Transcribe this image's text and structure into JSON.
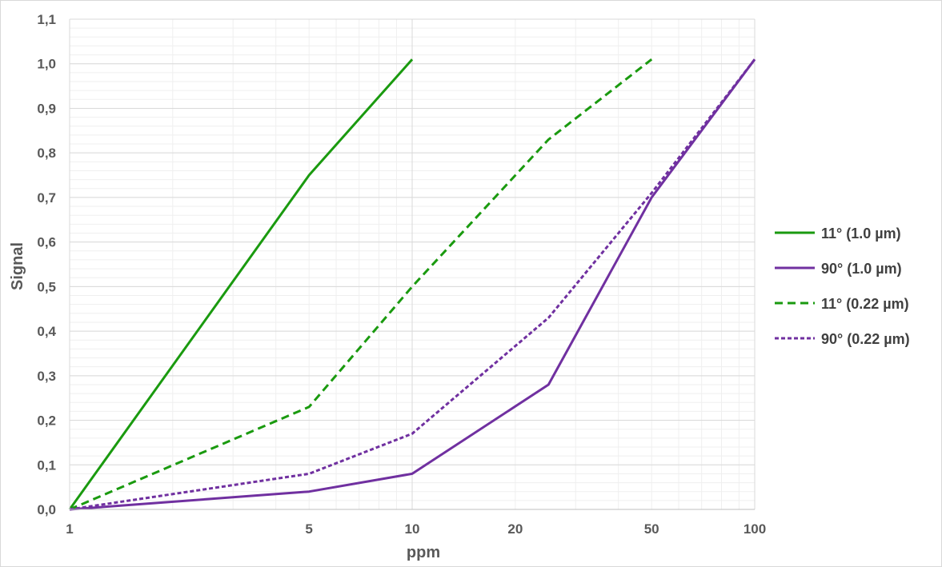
{
  "chart_data": {
    "type": "line",
    "xscale": "log",
    "xlabel": "ppm",
    "ylabel": "Signal",
    "xlim": [
      1,
      100
    ],
    "ylim": [
      0,
      1.1
    ],
    "xticks": [
      1,
      5,
      10,
      20,
      50,
      100
    ],
    "xtick_labels": [
      "1",
      "5",
      "10",
      "20",
      "50",
      "100"
    ],
    "yticks": [
      0,
      0.1,
      0.2,
      0.3,
      0.4,
      0.5,
      0.6,
      0.7,
      0.8,
      0.9,
      1.0,
      1.1
    ],
    "ytick_labels": [
      "0,0",
      "0,1",
      "0,2",
      "0,3",
      "0,4",
      "0,5",
      "0,6",
      "0,7",
      "0,8",
      "0,9",
      "1,0",
      "1,1"
    ],
    "grid": true,
    "legend_position": "right",
    "series": [
      {
        "name": "11° (1.0 µm)",
        "color": "#1a9a0f",
        "style": "solid",
        "x": [
          1,
          5,
          10
        ],
        "y": [
          0.0,
          0.75,
          1.01
        ]
      },
      {
        "name": "90° (1.0 µm)",
        "color": "#7030a0",
        "style": "solid",
        "x": [
          1,
          5,
          10,
          25,
          50,
          100
        ],
        "y": [
          0.0,
          0.04,
          0.08,
          0.28,
          0.7,
          1.01
        ]
      },
      {
        "name": "11° (0.22 µm)",
        "color": "#1a9a0f",
        "style": "dashed",
        "x": [
          1,
          5,
          10,
          25,
          50
        ],
        "y": [
          0.0,
          0.23,
          0.5,
          0.83,
          1.01
        ]
      },
      {
        "name": "90° (0.22 µm)",
        "color": "#7030a0",
        "style": "dotted",
        "x": [
          1,
          5,
          10,
          25,
          50,
          100
        ],
        "y": [
          0.0,
          0.08,
          0.17,
          0.43,
          0.71,
          1.01
        ]
      }
    ]
  }
}
